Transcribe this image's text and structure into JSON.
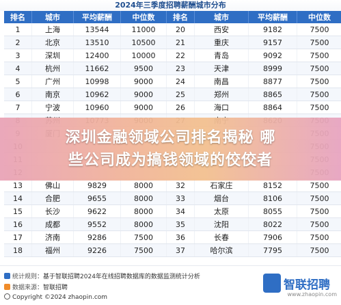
{
  "title": "2024年三季度招聘薪酬城市分布",
  "columns": [
    "排名",
    "城市",
    "平均薪酬",
    "中位数",
    "排名",
    "城市",
    "平均薪酬",
    "中位数"
  ],
  "rows": [
    [
      "1",
      "上海",
      "13544",
      "11000",
      "20",
      "西安",
      "9182",
      "7500"
    ],
    [
      "2",
      "北京",
      "13510",
      "10500",
      "21",
      "重庆",
      "9157",
      "7500"
    ],
    [
      "3",
      "深圳",
      "12400",
      "10000",
      "22",
      "青岛",
      "9092",
      "7500"
    ],
    [
      "4",
      "杭州",
      "11662",
      "9500",
      "23",
      "天津",
      "8999",
      "7500"
    ],
    [
      "5",
      "广州",
      "10998",
      "9000",
      "24",
      "南昌",
      "8877",
      "7500"
    ],
    [
      "6",
      "南京",
      "10962",
      "9000",
      "25",
      "郑州",
      "8865",
      "7500"
    ],
    [
      "7",
      "宁波",
      "10960",
      "9000",
      "26",
      "海口",
      "8864",
      "7500"
    ],
    [
      "8",
      "苏州",
      "10773",
      "9000",
      "27",
      "南宁",
      "8620",
      "7500"
    ],
    [
      "9",
      "厦门",
      "",
      "",
      "",
      "",
      "",
      "7500"
    ],
    [
      "10",
      "",
      "",
      "",
      "",
      "",
      "",
      "7500"
    ],
    [
      "11",
      "",
      "",
      "",
      "",
      "",
      "",
      "7500"
    ],
    [
      "12",
      "",
      "",
      "",
      "",
      "",
      "",
      "7500"
    ],
    [
      "13",
      "佛山",
      "9829",
      "8000",
      "32",
      "石家庄",
      "8152",
      "7500"
    ],
    [
      "14",
      "合肥",
      "9655",
      "8000",
      "33",
      "烟台",
      "8106",
      "7500"
    ],
    [
      "15",
      "长沙",
      "9622",
      "8000",
      "34",
      "太原",
      "8055",
      "7500"
    ],
    [
      "16",
      "成都",
      "9552",
      "8000",
      "35",
      "沈阳",
      "8022",
      "7500"
    ],
    [
      "17",
      "济南",
      "9286",
      "7500",
      "36",
      "长春",
      "7906",
      "7500"
    ],
    [
      "18",
      "福州",
      "9226",
      "7500",
      "37",
      "哈尔滨",
      "7795",
      "7500"
    ]
  ],
  "banner": {
    "line1": "深圳金融领域公司排名揭秘   哪",
    "line2": "些公司成为搞钱领域的佼佼者"
  },
  "footer": {
    "rule_label": "统计规则：",
    "rule_text": "基于智联招聘2024年在线招聘数据库的数据监测统计分析",
    "source_label": "数据来源：",
    "source_text": "智联招聘",
    "copyright": "Copyright ©2024 zhaopin.com",
    "url": "www.zhaopin.com"
  },
  "logo": {
    "text": "联招聘",
    "mark": "智"
  },
  "colors": {
    "header": "#2f6ec4",
    "banner_start": "#e9a2b6",
    "banner_end": "#e7a3c0"
  }
}
